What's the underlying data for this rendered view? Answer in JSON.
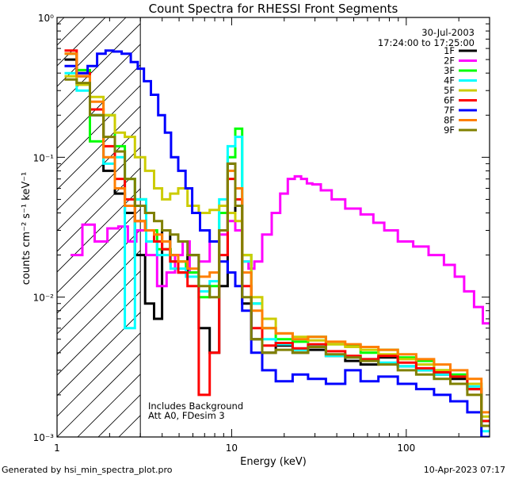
{
  "app": {
    "footer_left": "Generated by hsi_min_spectra_plot.pro",
    "footer_right": "10-Apr-2023 07:17"
  },
  "chart_data": {
    "type": "line",
    "title": "Count Spectra for RHESSI Front Segments",
    "subtitle": "",
    "xlabel": "Energy (keV)",
    "ylabel": "counts cm⁻² s⁻¹ keV⁻¹",
    "xscale": "log",
    "yscale": "log",
    "xlim": [
      1,
      300
    ],
    "ylim": [
      0.001,
      1
    ],
    "x_ticks": [
      {
        "value": 1,
        "label": "1"
      },
      {
        "value": 10,
        "label": "10"
      },
      {
        "value": 100,
        "label": "100"
      }
    ],
    "y_ticks": [
      {
        "value": 1,
        "label": "10⁰"
      },
      {
        "value": 0.1,
        "label": "10⁻¹"
      },
      {
        "value": 0.01,
        "label": "10⁻²"
      },
      {
        "value": 0.001,
        "label": "10⁻³"
      }
    ],
    "annotation_top_right": [
      "30-Jul-2003",
      "17:24:00 to 17:25:00"
    ],
    "annotation_bottom_left": [
      "Includes Background",
      "Att A0, FDesim 3"
    ],
    "hatched_region": {
      "x_from": 1,
      "x_to": 3
    },
    "legend": {
      "location": "top-right",
      "entries": [
        {
          "label": "1F",
          "color": "#000000"
        },
        {
          "label": "2F",
          "color": "#ff00ff"
        },
        {
          "label": "3F",
          "color": "#00ff00"
        },
        {
          "label": "4F",
          "color": "#00ffff"
        },
        {
          "label": "5F",
          "color": "#cccc00"
        },
        {
          "label": "6F",
          "color": "#ff0000"
        },
        {
          "label": "7F",
          "color": "#0000ff"
        },
        {
          "label": "8F",
          "color": "#ff7f00"
        },
        {
          "label": "9F",
          "color": "#808000"
        }
      ]
    },
    "series": [
      {
        "name": "1F",
        "color": "#000000",
        "x": [
          1.2,
          1.4,
          1.7,
          2.0,
          2.3,
          2.6,
          3.0,
          3.4,
          3.8,
          4.2,
          4.7,
          5.2,
          6.0,
          7.0,
          8.0,
          9.0,
          10.0,
          11.0,
          12.0,
          14.0,
          16.0,
          20.0,
          25.0,
          30.0,
          40.0,
          50.0,
          60.0,
          80.0,
          100.0,
          130.0,
          160.0,
          200.0,
          250.0,
          290.0
        ],
        "y": [
          0.5,
          0.38,
          0.2,
          0.08,
          0.055,
          0.04,
          0.02,
          0.009,
          0.007,
          0.03,
          0.02,
          0.015,
          0.02,
          0.006,
          0.004,
          0.012,
          0.09,
          0.03,
          0.009,
          0.005,
          0.004,
          0.0045,
          0.004,
          0.0042,
          0.0038,
          0.0035,
          0.0033,
          0.0037,
          0.0032,
          0.003,
          0.0028,
          0.0026,
          0.0022,
          0.0012
        ]
      },
      {
        "name": "2F",
        "color": "#ff00ff",
        "x": [
          1.3,
          1.5,
          1.8,
          2.1,
          2.4,
          2.7,
          3.0,
          3.5,
          4.0,
          4.5,
          5.0,
          5.5,
          6.0,
          7.0,
          8.0,
          9.0,
          10.0,
          11.0,
          12.0,
          13.0,
          14.0,
          16.0,
          18.0,
          20.0,
          22.0,
          24.0,
          26.0,
          28.0,
          30.0,
          35.0,
          40.0,
          50.0,
          60.0,
          70.0,
          80.0,
          100.0,
          120.0,
          150.0,
          180.0,
          200.0,
          230.0,
          260.0,
          290.0
        ],
        "y": [
          0.02,
          0.033,
          0.025,
          0.031,
          0.032,
          0.025,
          0.03,
          0.02,
          0.012,
          0.015,
          0.02,
          0.025,
          0.015,
          0.018,
          0.025,
          0.028,
          0.035,
          0.03,
          0.018,
          0.016,
          0.018,
          0.028,
          0.04,
          0.055,
          0.07,
          0.073,
          0.07,
          0.065,
          0.064,
          0.058,
          0.05,
          0.043,
          0.039,
          0.034,
          0.03,
          0.025,
          0.023,
          0.02,
          0.017,
          0.014,
          0.011,
          0.0085,
          0.0065
        ]
      },
      {
        "name": "3F",
        "color": "#00ff00",
        "x": [
          1.2,
          1.4,
          1.7,
          2.0,
          2.3,
          2.6,
          3.0,
          3.5,
          4.0,
          5.0,
          6.0,
          7.0,
          8.0,
          9.0,
          10.0,
          11.0,
          12.0,
          14.0,
          16.0,
          20.0,
          25.0,
          30.0,
          40.0,
          50.0,
          60.0,
          80.0,
          100.0,
          130.0,
          160.0,
          200.0,
          250.0,
          290.0
        ],
        "y": [
          0.55,
          0.42,
          0.13,
          0.2,
          0.12,
          0.07,
          0.05,
          0.03,
          0.022,
          0.018,
          0.015,
          0.01,
          0.012,
          0.04,
          0.1,
          0.16,
          0.02,
          0.009,
          0.006,
          0.005,
          0.0048,
          0.0052,
          0.0046,
          0.0045,
          0.004,
          0.0042,
          0.0037,
          0.0035,
          0.003,
          0.0028,
          0.0024,
          0.0013
        ]
      },
      {
        "name": "4F",
        "color": "#00ffff",
        "x": [
          1.2,
          1.4,
          1.7,
          2.0,
          2.3,
          2.6,
          3.0,
          3.5,
          4.0,
          5.0,
          6.0,
          7.0,
          8.0,
          9.0,
          10.0,
          11.0,
          12.0,
          14.0,
          16.0,
          20.0,
          25.0,
          30.0,
          40.0,
          50.0,
          60.0,
          80.0,
          100.0,
          130.0,
          160.0,
          200.0,
          250.0,
          290.0
        ],
        "y": [
          0.4,
          0.3,
          0.2,
          0.09,
          0.1,
          0.006,
          0.05,
          0.025,
          0.02,
          0.016,
          0.014,
          0.011,
          0.013,
          0.05,
          0.12,
          0.14,
          0.018,
          0.009,
          0.005,
          0.0046,
          0.0042,
          0.0045,
          0.0038,
          0.0037,
          0.0036,
          0.0034,
          0.0032,
          0.003,
          0.0028,
          0.0027,
          0.0023,
          0.0011
        ]
      },
      {
        "name": "5F",
        "color": "#cccc00",
        "x": [
          1.2,
          1.4,
          1.7,
          2.0,
          2.3,
          2.6,
          3.0,
          3.4,
          3.8,
          4.2,
          4.7,
          5.2,
          6.0,
          7.0,
          8.0,
          9.0,
          10.0,
          11.0,
          12.0,
          14.0,
          16.0,
          20.0,
          25.0,
          30.0,
          40.0,
          50.0,
          60.0,
          80.0,
          100.0,
          130.0,
          160.0,
          200.0,
          250.0,
          290.0
        ],
        "y": [
          0.38,
          0.33,
          0.27,
          0.2,
          0.15,
          0.14,
          0.1,
          0.08,
          0.06,
          0.05,
          0.055,
          0.06,
          0.045,
          0.04,
          0.042,
          0.045,
          0.04,
          0.035,
          0.02,
          0.01,
          0.007,
          0.0055,
          0.0052,
          0.0049,
          0.0046,
          0.0044,
          0.0042,
          0.0039,
          0.0036,
          0.0033,
          0.003,
          0.0027,
          0.0024,
          0.0014
        ]
      },
      {
        "name": "6F",
        "color": "#ff0000",
        "x": [
          1.2,
          1.4,
          1.7,
          2.0,
          2.3,
          2.6,
          3.0,
          3.4,
          3.8,
          4.2,
          4.7,
          5.2,
          6.0,
          7.0,
          8.0,
          9.0,
          10.0,
          11.0,
          12.0,
          14.0,
          16.0,
          20.0,
          25.0,
          30.0,
          40.0,
          50.0,
          60.0,
          80.0,
          100.0,
          130.0,
          160.0,
          200.0,
          250.0,
          290.0
        ],
        "y": [
          0.58,
          0.4,
          0.22,
          0.12,
          0.07,
          0.05,
          0.035,
          0.03,
          0.025,
          0.022,
          0.018,
          0.015,
          0.012,
          0.002,
          0.004,
          0.02,
          0.07,
          0.05,
          0.012,
          0.006,
          0.0045,
          0.0047,
          0.0043,
          0.0046,
          0.0041,
          0.0038,
          0.0036,
          0.0038,
          0.0034,
          0.0031,
          0.0029,
          0.0027,
          0.0022,
          0.0013
        ]
      },
      {
        "name": "7F",
        "color": "#0000ff",
        "x": [
          1.2,
          1.4,
          1.6,
          1.8,
          2.0,
          2.2,
          2.5,
          2.8,
          3.0,
          3.3,
          3.6,
          4.0,
          4.3,
          4.7,
          5.2,
          5.7,
          6.2,
          7.0,
          8.0,
          9.0,
          10.0,
          11.0,
          12.0,
          14.0,
          16.0,
          20.0,
          25.0,
          30.0,
          40.0,
          50.0,
          60.0,
          80.0,
          100.0,
          130.0,
          160.0,
          200.0,
          250.0,
          290.0
        ],
        "y": [
          0.45,
          0.4,
          0.45,
          0.55,
          0.58,
          0.57,
          0.55,
          0.48,
          0.43,
          0.35,
          0.28,
          0.2,
          0.15,
          0.1,
          0.08,
          0.06,
          0.04,
          0.03,
          0.025,
          0.018,
          0.015,
          0.012,
          0.008,
          0.004,
          0.003,
          0.0025,
          0.0028,
          0.0026,
          0.0024,
          0.003,
          0.0025,
          0.0027,
          0.0024,
          0.0022,
          0.002,
          0.0018,
          0.0015,
          0.001
        ]
      },
      {
        "name": "8F",
        "color": "#ff7f00",
        "x": [
          1.2,
          1.4,
          1.7,
          2.0,
          2.3,
          2.6,
          3.0,
          3.4,
          3.8,
          4.2,
          4.7,
          5.2,
          6.0,
          7.0,
          8.0,
          9.0,
          10.0,
          11.0,
          12.0,
          14.0,
          16.0,
          20.0,
          25.0,
          30.0,
          40.0,
          50.0,
          60.0,
          80.0,
          100.0,
          130.0,
          160.0,
          200.0,
          250.0,
          290.0
        ],
        "y": [
          0.55,
          0.38,
          0.25,
          0.1,
          0.06,
          0.045,
          0.035,
          0.03,
          0.028,
          0.025,
          0.02,
          0.018,
          0.016,
          0.014,
          0.015,
          0.03,
          0.08,
          0.06,
          0.015,
          0.008,
          0.006,
          0.0055,
          0.005,
          0.0052,
          0.0048,
          0.0046,
          0.0044,
          0.0042,
          0.0039,
          0.0036,
          0.0033,
          0.003,
          0.0026,
          0.0015
        ]
      },
      {
        "name": "9F",
        "color": "#808000",
        "x": [
          1.2,
          1.4,
          1.7,
          2.0,
          2.3,
          2.6,
          3.0,
          3.4,
          3.8,
          4.2,
          4.7,
          5.2,
          6.0,
          7.0,
          8.0,
          9.0,
          10.0,
          11.0,
          12.0,
          14.0,
          16.0,
          20.0,
          25.0,
          30.0,
          40.0,
          50.0,
          60.0,
          80.0,
          100.0,
          130.0,
          160.0,
          200.0,
          250.0,
          290.0
        ],
        "y": [
          0.36,
          0.34,
          0.2,
          0.14,
          0.11,
          0.07,
          0.045,
          0.04,
          0.035,
          0.03,
          0.028,
          0.025,
          0.02,
          0.012,
          0.01,
          0.03,
          0.09,
          0.045,
          0.01,
          0.005,
          0.004,
          0.0042,
          0.004,
          0.0044,
          0.0039,
          0.0037,
          0.0035,
          0.0033,
          0.003,
          0.0028,
          0.0026,
          0.0024,
          0.002,
          0.0012
        ]
      }
    ]
  }
}
